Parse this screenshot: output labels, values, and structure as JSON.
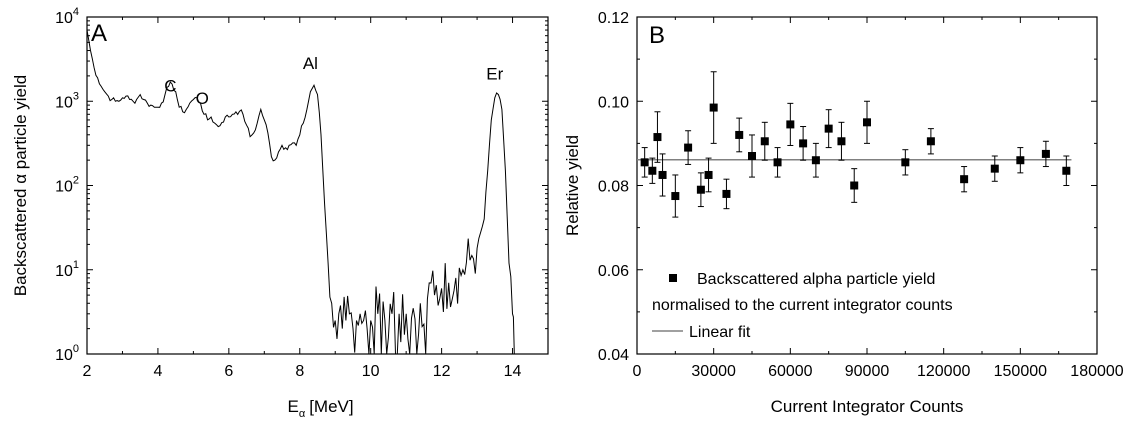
{
  "chart_data": [
    {
      "type": "line",
      "panel_label": "A",
      "xlabel": "E",
      "xlabel_sub": "α",
      "xlabel_unit": "[MeV]",
      "ylabel": "Backscattered α particle yield",
      "xlim": [
        2,
        15
      ],
      "ylim": [
        1,
        10000
      ],
      "yscale": "log",
      "x_ticks": [
        "2",
        "4",
        "6",
        "8",
        "10",
        "12",
        "14"
      ],
      "y_ticks": [
        {
          "base": "10",
          "exp": "0"
        },
        {
          "base": "10",
          "exp": "1"
        },
        {
          "base": "10",
          "exp": "2"
        },
        {
          "base": "10",
          "exp": "3"
        },
        {
          "base": "10",
          "exp": "4"
        }
      ],
      "annotations": [
        {
          "text": "C",
          "x": 4.35,
          "y": 1300
        },
        {
          "text": "O",
          "x": 5.25,
          "y": 930
        },
        {
          "text": "Al",
          "x": 8.3,
          "y": 2400
        },
        {
          "text": "Er",
          "x": 13.5,
          "y": 1800
        }
      ],
      "series": [
        {
          "x": [
            2.0,
            2.1,
            2.2,
            2.3,
            2.4,
            2.5,
            2.6,
            2.7,
            2.8,
            2.9,
            3.0,
            3.1,
            3.2,
            3.3,
            3.4,
            3.5,
            3.6,
            3.7,
            3.8,
            3.9,
            4.0,
            4.1,
            4.2,
            4.3,
            4.4,
            4.5,
            4.6,
            4.7,
            4.8,
            4.9,
            5.0,
            5.1,
            5.2,
            5.3,
            5.4,
            5.5,
            5.6,
            5.7,
            5.8,
            5.9,
            6.0,
            6.1,
            6.2,
            6.3,
            6.4,
            6.5,
            6.6,
            6.7,
            6.8,
            6.9,
            7.0,
            7.1,
            7.2,
            7.3,
            7.4,
            7.5,
            7.6,
            7.7,
            7.8,
            7.9,
            8.0,
            8.1,
            8.2,
            8.3,
            8.4,
            8.5,
            8.6,
            8.7,
            8.8,
            8.9,
            9.0,
            9.1,
            9.2,
            9.3,
            9.4,
            9.5,
            9.6,
            9.7,
            9.8,
            9.9,
            10.0,
            10.2,
            10.4,
            10.6,
            10.8,
            11.0,
            11.2,
            11.4,
            11.6,
            11.8,
            12.0,
            12.2,
            12.4,
            12.6,
            12.8,
            13.0,
            13.2,
            13.3,
            13.4,
            13.5,
            13.6,
            13.7,
            13.8,
            13.9,
            14.0,
            14.05
          ],
          "y": [
            7000,
            4000,
            2500,
            1900,
            1500,
            1300,
            1150,
            1050,
            1000,
            1000,
            1100,
            1150,
            1050,
            1000,
            1050,
            1200,
            1050,
            950,
            900,
            850,
            850,
            950,
            1200,
            1500,
            1600,
            1300,
            850,
            750,
            800,
            950,
            1050,
            1100,
            950,
            700,
            600,
            650,
            550,
            500,
            560,
            650,
            650,
            700,
            750,
            760,
            700,
            520,
            380,
            420,
            550,
            800,
            600,
            420,
            220,
            200,
            250,
            300,
            280,
            300,
            320,
            300,
            400,
            550,
            800,
            1300,
            1550,
            1200,
            400,
            60,
            12,
            4,
            2.5,
            3,
            2,
            2.5,
            3,
            2,
            2.5,
            3,
            2.5,
            2,
            2.5,
            3,
            2.5,
            3,
            3,
            3,
            3.5,
            4,
            4.5,
            5,
            6,
            7,
            8,
            10,
            13,
            18,
            40,
            150,
            600,
            1100,
            1200,
            800,
            150,
            12,
            3,
            1
          ]
        }
      ]
    },
    {
      "type": "scatter",
      "panel_label": "B",
      "xlabel": "Current Integrator Counts",
      "ylabel": "Relative yield",
      "xlim": [
        0,
        180000
      ],
      "ylim": [
        0.04,
        0.12
      ],
      "x_ticks": [
        "0",
        "30000",
        "60000",
        "90000",
        "120000",
        "150000",
        "180000"
      ],
      "y_ticks": [
        "0.04",
        "0.06",
        "0.08",
        "0.10",
        "0.12"
      ],
      "legend": {
        "placement": "bottom-left",
        "series_label_line1": "Backscattered alpha particle yield",
        "series_label_line2": "normalised to the current integrator counts",
        "fit_label": "Linear fit"
      },
      "fit_line": {
        "x": [
          0,
          170000
        ],
        "y": [
          0.0861,
          0.0861
        ]
      },
      "series": [
        {
          "name": "Backscattered alpha particle yield normalised to the current integrator counts",
          "x": [
            3000,
            6000,
            8000,
            10000,
            15000,
            20000,
            25000,
            28000,
            30000,
            35000,
            40000,
            45000,
            50000,
            55000,
            60000,
            65000,
            70000,
            75000,
            80000,
            85000,
            90000,
            105000,
            115000,
            128000,
            140000,
            150000,
            160000,
            168000
          ],
          "y": [
            0.0855,
            0.0835,
            0.0915,
            0.0825,
            0.0775,
            0.089,
            0.079,
            0.0825,
            0.0985,
            0.078,
            0.092,
            0.087,
            0.0905,
            0.0855,
            0.0945,
            0.09,
            0.086,
            0.0935,
            0.0905,
            0.08,
            0.095,
            0.0855,
            0.0905,
            0.0815,
            0.084,
            0.086,
            0.0875,
            0.0835
          ],
          "err": [
            0.0035,
            0.003,
            0.006,
            0.005,
            0.005,
            0.004,
            0.004,
            0.004,
            0.0085,
            0.0035,
            0.004,
            0.005,
            0.0045,
            0.0035,
            0.005,
            0.004,
            0.004,
            0.0045,
            0.0045,
            0.004,
            0.005,
            0.003,
            0.003,
            0.003,
            0.003,
            0.003,
            0.003,
            0.0035
          ]
        }
      ]
    }
  ],
  "colors": {
    "axis": "#000000",
    "data": "#000000",
    "fit": "#808080"
  }
}
